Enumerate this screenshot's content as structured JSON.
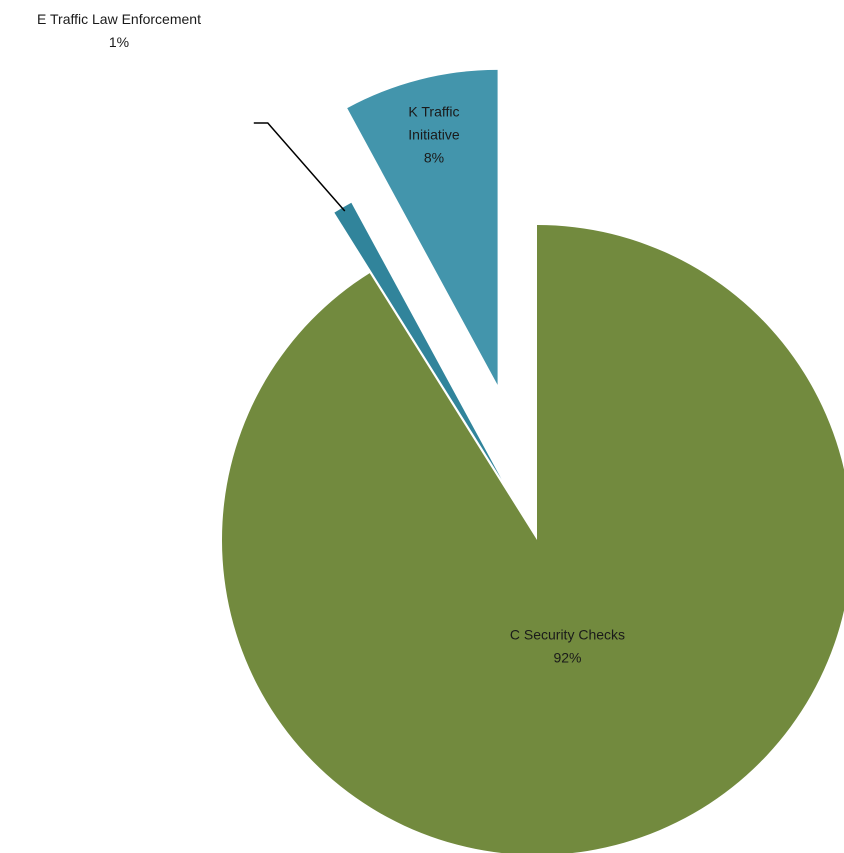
{
  "chart_data": {
    "type": "pie",
    "title": "",
    "exploded": true,
    "slices": [
      {
        "name": "C Security Checks",
        "name_lines": [
          "C Security Checks"
        ],
        "value": 92,
        "label": "92%",
        "color": "#728a3e",
        "label_placement": "inside"
      },
      {
        "name": "E Traffic Law Enforcement",
        "name_lines": [
          "E Traffic Law Enforcement"
        ],
        "value": 1,
        "label": "1%",
        "color": "#31849b",
        "label_placement": "outside-leader"
      },
      {
        "name": "K Traffic Initiative",
        "name_lines": [
          "K Traffic",
          "Initiative"
        ],
        "value": 8,
        "label": "8%",
        "color": "#4395ac",
        "label_placement": "inside"
      }
    ]
  }
}
